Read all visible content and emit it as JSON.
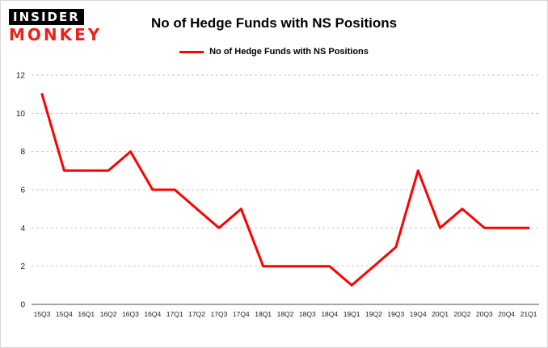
{
  "logo": {
    "line1": "INSIDER",
    "line2": "MONKEY"
  },
  "header": {
    "title": "No of Hedge Funds with NS Positions"
  },
  "legend": {
    "label": "No of Hedge Funds with NS Positions"
  },
  "colors": {
    "accent": "#ff0000",
    "logo_red": "#e8231a",
    "grid": "#c8c8c8",
    "axis": "#4d4d4d",
    "background": "#ffffff"
  },
  "chart_data": {
    "type": "line",
    "title": "No of Hedge Funds with NS Positions",
    "xlabel": "",
    "ylabel": "",
    "categories": [
      "15Q3",
      "15Q4",
      "16Q1",
      "16Q2",
      "16Q3",
      "16Q4",
      "17Q1",
      "17Q2",
      "17Q3",
      "17Q4",
      "18Q1",
      "18Q2",
      "18Q3",
      "18Q4",
      "19Q1",
      "19Q2",
      "19Q3",
      "19Q4",
      "20Q1",
      "20Q2",
      "20Q3",
      "20Q4",
      "21Q1"
    ],
    "values": [
      11,
      7,
      7,
      7,
      8,
      6,
      6,
      5,
      4,
      5,
      2,
      2,
      2,
      2,
      1,
      2,
      3,
      7,
      4,
      5,
      4,
      4,
      4
    ],
    "ylim": [
      0,
      12
    ],
    "yticks": [
      0,
      2,
      4,
      6,
      8,
      10,
      12
    ],
    "grid": true,
    "legend_position": "top",
    "line_color": "#ff0000",
    "line_width": 3
  }
}
